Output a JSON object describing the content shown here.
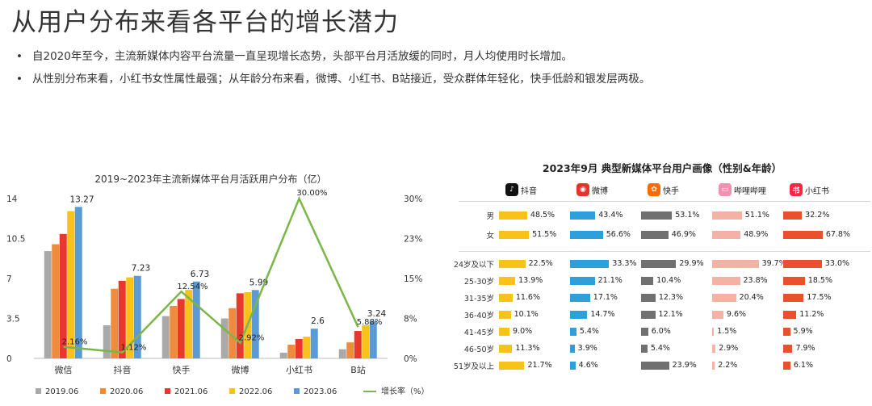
{
  "header": {
    "title": "从用户分布来看各平台的增长潜力",
    "bullets": [
      "自2020年至今，主流新媒体内容平台流量一直呈现增长态势，头部平台月活放缓的同时，月人均使用时长增加。",
      "从性别分布来看，小红书女性属性最强；从年龄分布来看，微博、小红书、B站接近，受众群体年轻化，快手低龄和银发层两极。"
    ],
    "bullet_symbol": "•"
  },
  "chart_data": [
    {
      "type": "bar",
      "title": "2019~2023年主流新媒体平台月活跃用户分布（亿）",
      "categories": [
        "微信",
        "抖音",
        "快手",
        "微博",
        "小红书",
        "B站"
      ],
      "series": [
        {
          "name": "2019.06",
          "color": "#a9a9a9",
          "values": [
            9.4,
            2.9,
            3.7,
            3.5,
            0.5,
            0.8
          ]
        },
        {
          "name": "2020.06",
          "color": "#f08a3c",
          "values": [
            10.0,
            6.1,
            4.6,
            4.4,
            1.2,
            1.4
          ]
        },
        {
          "name": "2021.06",
          "color": "#e8382b",
          "values": [
            10.9,
            6.8,
            5.2,
            5.7,
            1.7,
            2.4
          ]
        },
        {
          "name": "2022.06",
          "color": "#f8c21a",
          "values": [
            12.9,
            7.1,
            6.0,
            5.8,
            1.9,
            2.9
          ]
        },
        {
          "name": "2023.06",
          "color": "#5b9bd5",
          "values": [
            13.27,
            7.23,
            6.73,
            5.99,
            2.6,
            3.24
          ]
        }
      ],
      "bar_labels": {
        "series": "2023.06",
        "text": [
          "13.27",
          "7.23",
          "6.73",
          "5.99",
          "2.6",
          "3.24"
        ]
      },
      "line": {
        "name": "增长率（%）",
        "color": "#7ab648",
        "values": [
          2.16,
          1.12,
          12.54,
          2.92,
          30.0,
          5.88
        ],
        "labels": [
          "2.16%",
          "1.12%",
          "12.54%",
          "2.92%",
          "30.00%",
          "5.88%"
        ]
      },
      "y_ticks": [
        "0",
        "3.5",
        "7",
        "10.5",
        "14"
      ],
      "ylim": [
        0,
        14
      ],
      "y2_ticks": [
        "0%",
        "8%",
        "15%",
        "23%",
        "30%"
      ],
      "y2lim": [
        0,
        30
      ],
      "legend_position": "bottom"
    },
    {
      "type": "bar",
      "title": "2023年9月 典型新媒体平台用户画像（性别&年龄）",
      "platforms": [
        {
          "name": "抖音",
          "color": "#f8c21a",
          "logo": "♪",
          "logo_bg": "#111111"
        },
        {
          "name": "微博",
          "color": "#2e9fd9",
          "logo": "◉",
          "logo_bg": "#e6332a"
        },
        {
          "name": "快手",
          "color": "#707070",
          "logo": "✿",
          "logo_bg": "#ff6a00"
        },
        {
          "name": "哔哩哔哩",
          "color": "#f3b2a4",
          "logo": "▭",
          "logo_bg": "#f48fb1"
        },
        {
          "name": "小红书",
          "color": "#e9502e",
          "logo": "书",
          "logo_bg": "#ff2442"
        }
      ],
      "gender_rows": [
        {
          "label": "男",
          "values": [
            48.5,
            43.4,
            53.1,
            51.1,
            32.2
          ],
          "texts": [
            "48.5%",
            "43.4%",
            "53.1%",
            "51.1%",
            "32.2%"
          ]
        },
        {
          "label": "女",
          "values": [
            51.5,
            56.6,
            46.9,
            48.9,
            67.8
          ],
          "texts": [
            "51.5%",
            "56.6%",
            "46.9%",
            "48.9%",
            "67.8%"
          ]
        }
      ],
      "age_rows": [
        {
          "label": "24岁及以下",
          "values": [
            22.5,
            33.3,
            29.9,
            39.7,
            33.0
          ],
          "texts": [
            "22.5%",
            "33.3%",
            "29.9%",
            "39.7%",
            "33.0%"
          ]
        },
        {
          "label": "25-30岁",
          "values": [
            13.9,
            21.1,
            10.4,
            23.8,
            18.5
          ],
          "texts": [
            "13.9%",
            "21.1%",
            "10.4%",
            "23.8%",
            "18.5%"
          ]
        },
        {
          "label": "31-35岁",
          "values": [
            11.6,
            17.1,
            12.3,
            20.4,
            17.5
          ],
          "texts": [
            "11.6%",
            "17.1%",
            "12.3%",
            "20.4%",
            "17.5%"
          ]
        },
        {
          "label": "36-40岁",
          "values": [
            10.1,
            14.7,
            12.1,
            9.6,
            11.2
          ],
          "texts": [
            "10.1%",
            "14.7%",
            "12.1%",
            "9.6%",
            "11.2%"
          ]
        },
        {
          "label": "41-45岁",
          "values": [
            9.0,
            5.4,
            6.0,
            1.5,
            5.9
          ],
          "texts": [
            "9.0%",
            "5.4%",
            "6.0%",
            "1.5%",
            "5.9%"
          ]
        },
        {
          "label": "46-50岁",
          "values": [
            11.3,
            3.9,
            5.4,
            2.9,
            7.9
          ],
          "texts": [
            "11.3%",
            "3.9%",
            "5.4%",
            "2.9%",
            "7.9%"
          ]
        },
        {
          "label": "51岁及以上",
          "values": [
            21.7,
            4.6,
            23.9,
            2.2,
            6.1
          ],
          "texts": [
            "21.7%",
            "4.6%",
            "23.9%",
            "2.2%",
            "6.1%"
          ]
        }
      ]
    }
  ]
}
